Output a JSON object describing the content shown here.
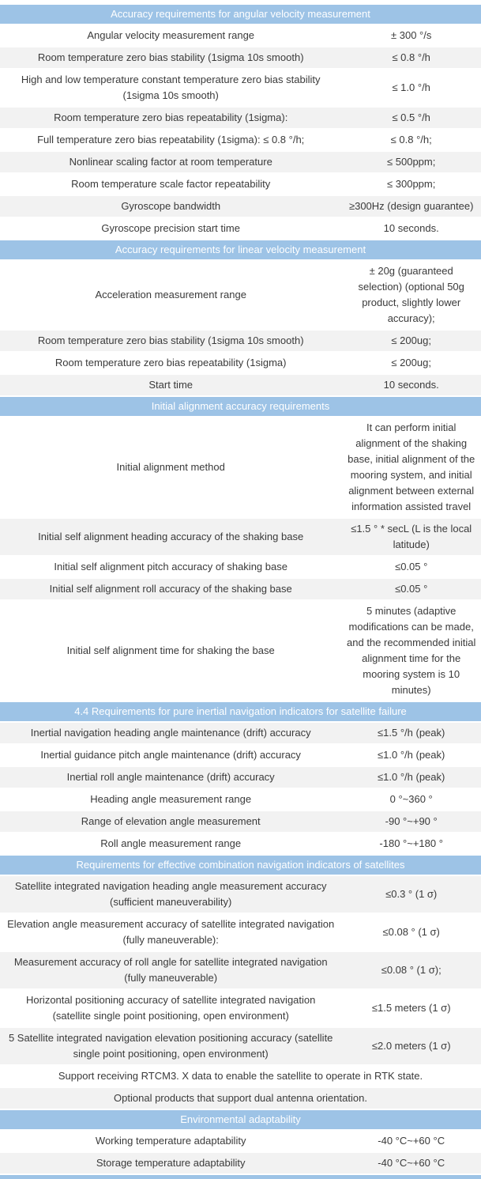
{
  "colors": {
    "section_header_bg": "#9DC3E6",
    "section_header_text": "#FFFFFF",
    "row_shade_bg": "#F2F2F2",
    "row_bg": "#FFFFFF",
    "body_text": "#3A3A3A"
  },
  "table": {
    "sections": [
      {
        "title": "Accuracy requirements for angular velocity measurement",
        "first_row_shaded": false,
        "rows": [
          {
            "label": "Angular velocity measurement range",
            "value": "± 300 °/s"
          },
          {
            "label": "Room temperature zero bias stability (1sigma 10s smooth)",
            "value": "≤ 0.8 °/h"
          },
          {
            "label": "High and low temperature constant temperature zero bias stability (1sigma 10s smooth)",
            "value": "≤ 1.0 °/h"
          },
          {
            "label": "Room temperature zero bias repeatability (1sigma):",
            "value": "≤ 0.5 °/h"
          },
          {
            "label": "Full temperature zero bias repeatability (1sigma): ≤ 0.8 °/h;",
            "value": "≤ 0.8 °/h;"
          },
          {
            "label": "Nonlinear scaling factor at room temperature",
            "value": "≤ 500ppm;"
          },
          {
            "label": "Room temperature scale factor repeatability",
            "value": "≤ 300ppm;"
          },
          {
            "label": "Gyroscope bandwidth",
            "value": "≥300Hz (design guarantee)"
          },
          {
            "label": "Gyroscope precision start time",
            "value": "10 seconds."
          }
        ]
      },
      {
        "title": "Accuracy requirements for linear velocity measurement",
        "first_row_shaded": false,
        "rows": [
          {
            "label": "Acceleration measurement range",
            "value": "± 20g (guaranteed selection) (optional 50g product, slightly lower accuracy);"
          },
          {
            "label": "Room temperature zero bias stability (1sigma 10s smooth)",
            "value": "≤ 200ug;"
          },
          {
            "label": "Room temperature zero bias repeatability (1sigma)",
            "value": "≤ 200ug;"
          },
          {
            "label": "Start time",
            "value": "10 seconds."
          }
        ]
      },
      {
        "title": "Initial alignment accuracy requirements",
        "first_row_shaded": false,
        "rows": [
          {
            "label": "Initial alignment method",
            "value": "It can perform initial alignment of the shaking base, initial alignment of the mooring system, and initial alignment between external information assisted travel"
          },
          {
            "label": "Initial self alignment heading accuracy of the shaking base",
            "value": "≤1.5 ° * secL (L is the local latitude)"
          },
          {
            "label": "Initial self alignment pitch accuracy of shaking base",
            "value": "≤0.05 °"
          },
          {
            "label": "Initial self alignment roll accuracy of the shaking base",
            "value": "≤0.05 °"
          },
          {
            "label": "Initial self alignment time for shaking the base",
            "value": "5 minutes (adaptive modifications can be made, and the recommended initial alignment time for the mooring system is 10 minutes)"
          }
        ]
      },
      {
        "title": "4.4 Requirements for pure inertial navigation indicators for satellite failure",
        "first_row_shaded": true,
        "rows": [
          {
            "label": "Inertial navigation heading angle maintenance (drift) accuracy",
            "value": "≤1.5 °/h (peak)"
          },
          {
            "label": "Inertial guidance pitch angle maintenance (drift) accuracy",
            "value": "≤1.0 °/h (peak)"
          },
          {
            "label": "Inertial roll angle maintenance (drift) accuracy",
            "value": "≤1.0 °/h (peak)"
          },
          {
            "label": "Heading angle measurement range",
            "value": "0 °~360 °"
          },
          {
            "label": "Range of elevation angle measurement",
            "value": "-90 °~+90 °"
          },
          {
            "label": "Roll angle measurement range",
            "value": "-180 °~+180 °"
          }
        ]
      },
      {
        "title": "Requirements for effective combination navigation indicators of satellites",
        "first_row_shaded": true,
        "rows": [
          {
            "label": "Satellite integrated navigation heading angle measurement accuracy (sufficient maneuverability)",
            "value": "≤0.3 ° (1 σ)"
          },
          {
            "label": "Elevation angle measurement accuracy of satellite integrated navigation (fully maneuverable):",
            "value": "≤0.08 ° (1 σ)"
          },
          {
            "label": "Measurement accuracy of roll angle for satellite integrated navigation (fully maneuverable)",
            "value": "≤0.08 ° (1 σ);"
          },
          {
            "label": "Horizontal positioning accuracy of satellite integrated navigation (satellite single point positioning, open environment)",
            "value": "≤1.5 meters (1 σ)"
          },
          {
            "label": "5 Satellite integrated navigation elevation positioning accuracy (satellite single point positioning, open environment)",
            "value": "≤2.0 meters (1 σ)"
          },
          {
            "label": "Support receiving RTCM3. X data to enable the satellite to operate in RTK state.",
            "span": true
          },
          {
            "label": "Optional products that support dual antenna orientation.",
            "span": true
          }
        ]
      },
      {
        "title": "Environmental adaptability",
        "first_row_shaded": false,
        "rows": [
          {
            "label": "Working temperature adaptability",
            "value": "-40 °C~+60 °C"
          },
          {
            "label": "Storage temperature adaptability",
            "value": "-40 °C~+60 °C"
          }
        ]
      }
    ]
  }
}
